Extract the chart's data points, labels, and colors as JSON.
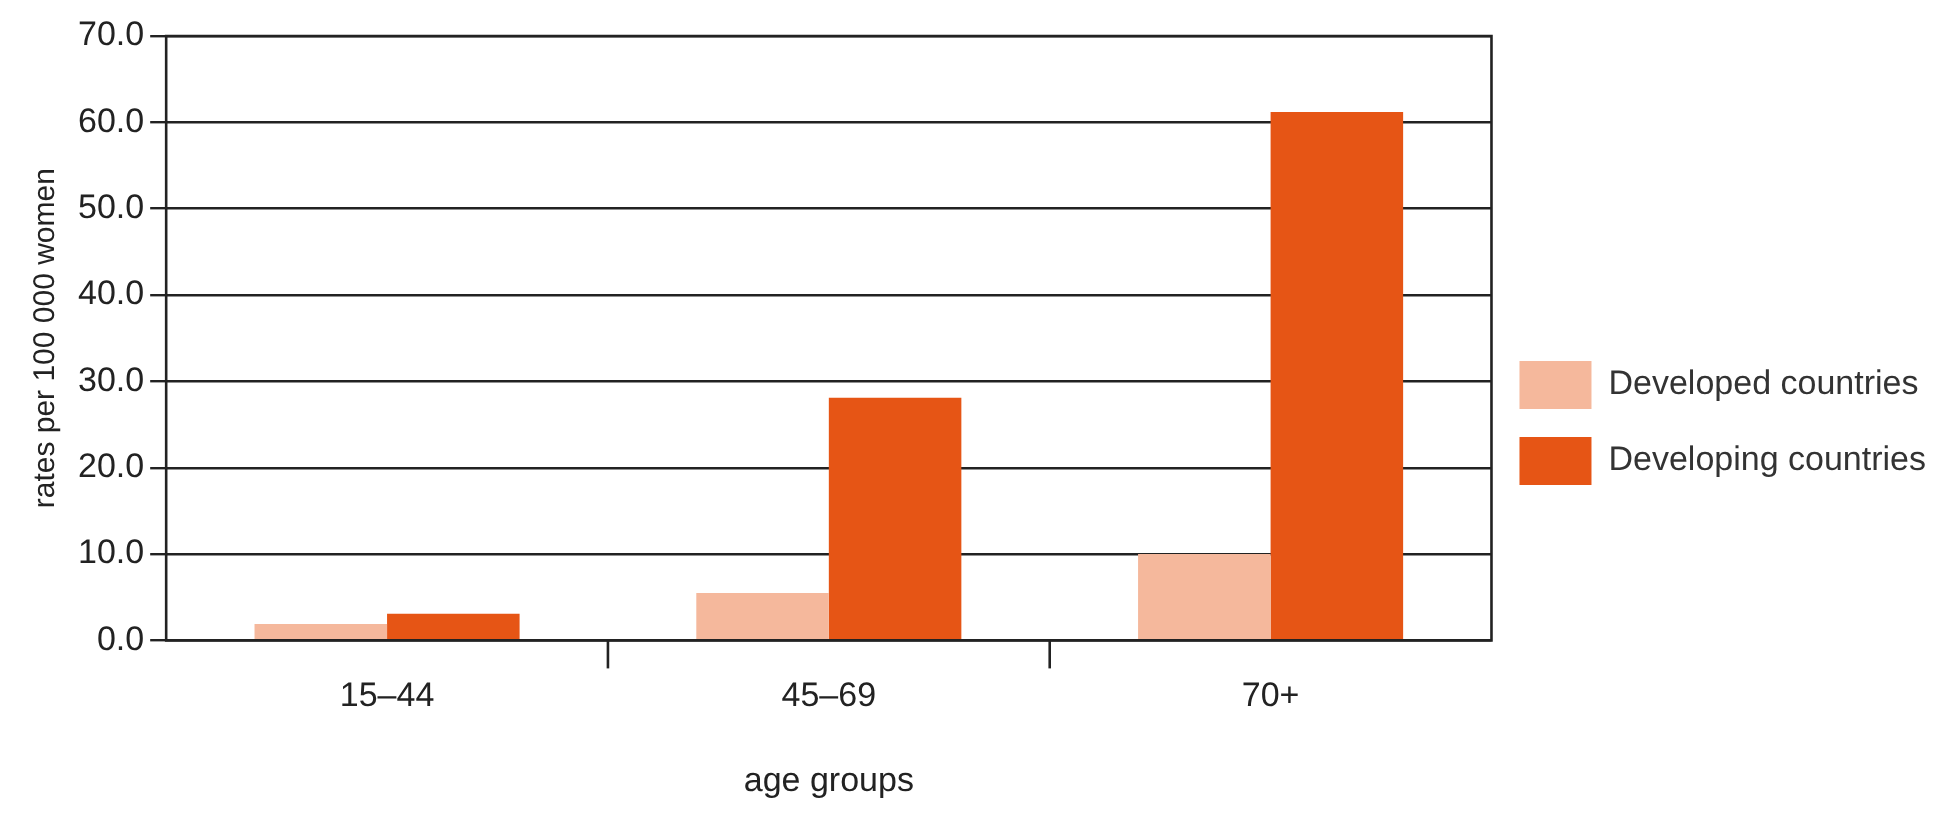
{
  "chart_data": {
    "type": "bar",
    "xlabel": "age groups",
    "ylabel": "rates per 100 000 women",
    "categories": [
      "15–44",
      "45–69",
      "70+"
    ],
    "series": [
      {
        "name": "Developed countries",
        "color": "#f5b89c",
        "values": [
          1.9,
          5.5,
          10.0
        ]
      },
      {
        "name": "Developing countries",
        "color": "#e65515",
        "values": [
          3.1,
          28.1,
          61.2
        ]
      }
    ],
    "ylim": [
      0,
      70
    ],
    "yticks": [
      {
        "value": 0,
        "label": "0.0"
      },
      {
        "value": 10,
        "label": "10.0"
      },
      {
        "value": 20,
        "label": "20.0"
      },
      {
        "value": 30,
        "label": "30.0"
      },
      {
        "value": 40,
        "label": "40.0"
      },
      {
        "value": 50,
        "label": "50.0"
      },
      {
        "value": 60,
        "label": "60.0"
      },
      {
        "value": 70,
        "label": "70.0"
      }
    ],
    "grid": "y",
    "legend": "right"
  }
}
